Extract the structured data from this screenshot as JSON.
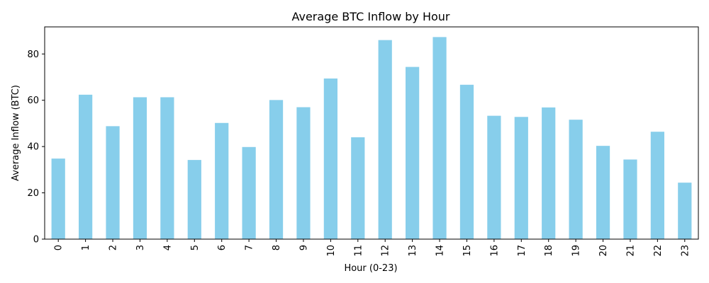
{
  "chart_data": {
    "type": "bar",
    "title": "Average BTC Inflow by Hour",
    "xlabel": "Hour (0-23)",
    "ylabel": "Average Inflow (BTC)",
    "categories": [
      "0",
      "1",
      "2",
      "3",
      "4",
      "5",
      "6",
      "7",
      "8",
      "9",
      "10",
      "11",
      "12",
      "13",
      "14",
      "15",
      "16",
      "17",
      "18",
      "19",
      "20",
      "21",
      "22",
      "23"
    ],
    "values": [
      34.8,
      62.4,
      48.8,
      61.3,
      61.3,
      34.2,
      50.2,
      39.8,
      60.1,
      57.0,
      69.4,
      44.0,
      86.0,
      74.4,
      87.3,
      66.7,
      53.3,
      52.8,
      56.9,
      51.6,
      40.3,
      34.4,
      46.4,
      24.4
    ],
    "yticks": [
      0,
      20,
      40,
      60,
      80
    ],
    "ylim": [
      0,
      91.7
    ],
    "bar_color": "#87ceeb",
    "grid": false,
    "legend": false
  }
}
